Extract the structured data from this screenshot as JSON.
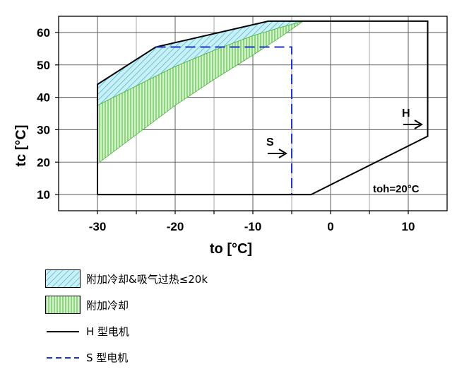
{
  "chart_data": {
    "type": "area",
    "xlabel": "to [°C]",
    "ylabel": "tc [°C]",
    "xlim": [
      -35,
      15
    ],
    "ylim": [
      5,
      65
    ],
    "xticks": [
      -30,
      -20,
      -10,
      0,
      10
    ],
    "yticks": [
      10,
      20,
      30,
      40,
      50,
      60
    ],
    "grid": true,
    "annotations": {
      "h_label": "H",
      "s_label": "S",
      "toh": "toh=20°C"
    },
    "series": [
      {
        "name": "H 型电机",
        "kind": "boundary",
        "style": "solid",
        "color": "#000000",
        "points": [
          [
            -30,
            10
          ],
          [
            -2.5,
            10
          ],
          [
            12.5,
            28
          ],
          [
            12.5,
            63.5
          ],
          [
            -8,
            63.5
          ],
          [
            -22.5,
            55.5
          ],
          [
            -30,
            44
          ],
          [
            -30,
            10
          ]
        ]
      },
      {
        "name": "S 型电机",
        "kind": "boundary",
        "style": "dashed",
        "color": "#1a35c8",
        "points": [
          [
            -22.5,
            55.5
          ],
          [
            -5,
            55.5
          ],
          [
            -5,
            10
          ]
        ]
      },
      {
        "name": "附加冷却&吸气过热≤20k",
        "kind": "region",
        "fill": "#7fd6ea",
        "pattern": "diagonal",
        "upper": [
          [
            -30,
            44
          ],
          [
            -22.5,
            55.5
          ],
          [
            -8,
            63.5
          ]
        ],
        "lower": [
          [
            -30,
            37.5
          ],
          [
            -25,
            43.5
          ],
          [
            -20,
            49.5
          ],
          [
            -15,
            54.5
          ],
          [
            -10,
            59
          ],
          [
            -6.5,
            61.5
          ],
          [
            -3.5,
            63.5
          ]
        ]
      },
      {
        "name": "附加冷却",
        "kind": "region",
        "fill": "#9fdf8a",
        "pattern": "vertical",
        "upper": [
          [
            -30,
            37.5
          ],
          [
            -25,
            43.5
          ],
          [
            -20,
            49.5
          ],
          [
            -15,
            54.5
          ],
          [
            -10,
            59
          ],
          [
            -6.5,
            61.5
          ],
          [
            -3.5,
            63.5
          ]
        ],
        "lower": [
          [
            -30,
            19.5
          ],
          [
            -25,
            28.5
          ],
          [
            -20,
            37.5
          ],
          [
            -15,
            45.5
          ],
          [
            -10,
            53
          ],
          [
            -6.5,
            58.5
          ],
          [
            -3.5,
            63.5
          ]
        ]
      }
    ],
    "legend": {
      "placement": "bottom-left",
      "items": [
        {
          "label": "附加冷却&吸气过热≤20k",
          "kind": "region",
          "fill": "#7fd6ea",
          "pattern": "diagonal"
        },
        {
          "label": "附加冷却",
          "kind": "region",
          "fill": "#9fdf8a",
          "pattern": "vertical"
        },
        {
          "label": "H 型电机",
          "kind": "line",
          "style": "solid",
          "color": "#000000"
        },
        {
          "label": "S 型电机",
          "kind": "line",
          "style": "dashed",
          "color": "#1a35c8"
        }
      ]
    }
  }
}
